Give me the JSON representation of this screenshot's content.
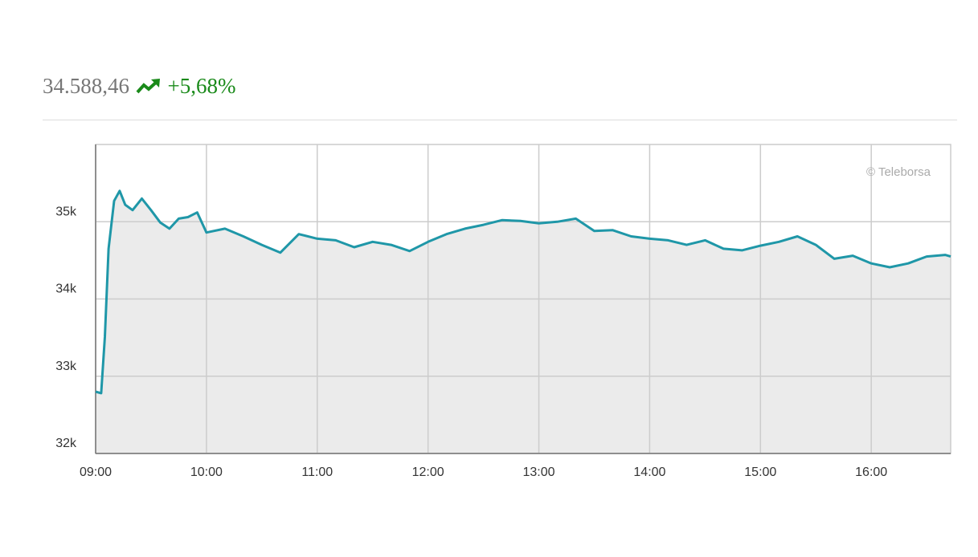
{
  "header": {
    "last": "34.588,46",
    "change": "+5,68%"
  },
  "chart_data": {
    "type": "line",
    "watermark": "© Teleborsa",
    "x": [
      "09:00",
      "09:03",
      "09:05",
      "09:07",
      "09:10",
      "09:13",
      "09:16",
      "09:20",
      "09:25",
      "09:30",
      "09:35",
      "09:40",
      "09:45",
      "09:50",
      "09:55",
      "10:00",
      "10:10",
      "10:20",
      "10:30",
      "10:40",
      "10:50",
      "11:00",
      "11:10",
      "11:20",
      "11:30",
      "11:40",
      "11:50",
      "12:00",
      "12:10",
      "12:20",
      "12:30",
      "12:40",
      "12:50",
      "13:00",
      "13:10",
      "13:20",
      "13:30",
      "13:40",
      "13:50",
      "14:00",
      "14:10",
      "14:20",
      "14:30",
      "14:40",
      "14:50",
      "15:00",
      "15:10",
      "15:20",
      "15:30",
      "15:40",
      "15:50",
      "16:00",
      "16:10",
      "16:20",
      "16:30",
      "16:40",
      "16:43"
    ],
    "series": [
      {
        "color": "#1f97a8",
        "fill": "#ebebeb",
        "values": [
          32800,
          32780,
          33510,
          34650,
          35270,
          35400,
          35220,
          35150,
          35300,
          35150,
          34990,
          34910,
          35040,
          35060,
          35120,
          34860,
          34910,
          34810,
          34700,
          34600,
          34840,
          34780,
          34760,
          34670,
          34740,
          34700,
          34620,
          34740,
          34840,
          34910,
          34960,
          35020,
          35010,
          34980,
          35000,
          35040,
          34880,
          34890,
          34810,
          34780,
          34760,
          34700,
          34760,
          34650,
          34630,
          34690,
          34740,
          34810,
          34700,
          34520,
          34560,
          34460,
          34410,
          34460,
          34550,
          34570,
          34550
        ]
      }
    ],
    "xlim": [
      "09:00",
      "16:43"
    ],
    "xticks": [
      "09:00",
      "10:00",
      "11:00",
      "12:00",
      "13:00",
      "14:00",
      "15:00",
      "16:00"
    ],
    "ylim": [
      32000,
      36000
    ],
    "yticks": [
      {
        "value": 32000,
        "label": "32k"
      },
      {
        "value": 33000,
        "label": "33k"
      },
      {
        "value": 34000,
        "label": "34k"
      },
      {
        "value": 35000,
        "label": "35k"
      }
    ],
    "grid": true
  }
}
